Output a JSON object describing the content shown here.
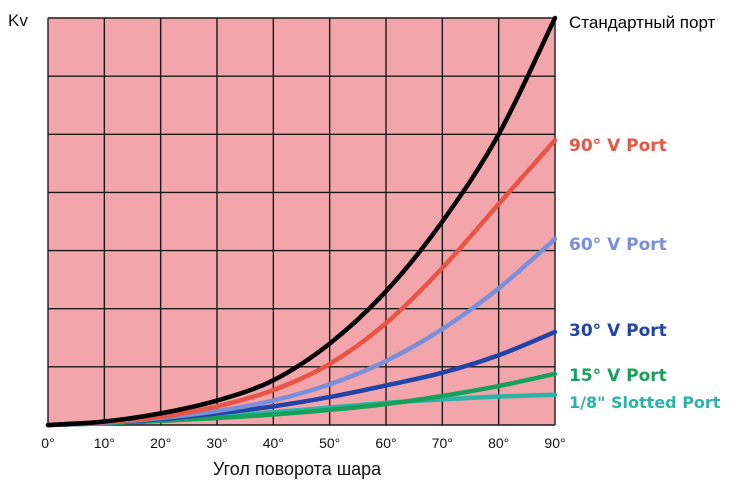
{
  "chart_data": {
    "type": "line",
    "title": "",
    "ylabel": "Kv",
    "xlabel": "Угол поворота шара",
    "x": [
      0,
      10,
      20,
      30,
      40,
      50,
      60,
      70,
      80,
      90
    ],
    "x_tick_labels": [
      "0°",
      "10°",
      "20°",
      "30°",
      "40°",
      "50°",
      "60°",
      "70°",
      "80°",
      "90°"
    ],
    "xlim": [
      0,
      90
    ],
    "ylim": [
      0,
      7
    ],
    "grid": true,
    "background_color": "#f2a6ac",
    "grid_color": "#1a1a1a",
    "legend": "labels at right end of each line",
    "series": [
      {
        "name": "Стандартный порт",
        "color": "#000000",
        "label_color": "#000000",
        "values": [
          0,
          0.06,
          0.2,
          0.42,
          0.77,
          1.4,
          2.3,
          3.5,
          5.0,
          7.0
        ]
      },
      {
        "name": "90° V Port",
        "color": "#e85545",
        "label_color": "#e85545",
        "values": [
          0,
          0.05,
          0.14,
          0.32,
          0.6,
          1.05,
          1.75,
          2.7,
          3.8,
          4.9
        ]
      },
      {
        "name": "60° V Port",
        "color": "#7b8fd8",
        "label_color": "#7b8fd8",
        "values": [
          0,
          0.04,
          0.12,
          0.24,
          0.42,
          0.7,
          1.1,
          1.65,
          2.35,
          3.2
        ]
      },
      {
        "name": "30° V Port",
        "color": "#2243a8",
        "label_color": "#2243a8",
        "values": [
          0,
          0.04,
          0.1,
          0.2,
          0.32,
          0.48,
          0.68,
          0.9,
          1.2,
          1.6
        ]
      },
      {
        "name": "15° V Port",
        "color": "#16a05a",
        "label_color": "#16a05a",
        "values": [
          0,
          0.03,
          0.07,
          0.12,
          0.18,
          0.26,
          0.36,
          0.5,
          0.67,
          0.88
        ]
      },
      {
        "name": "1/8\" Slotted Port",
        "color": "#2bb3a8",
        "label_color": "#2bb3a8",
        "values": [
          0,
          0.03,
          0.08,
          0.14,
          0.22,
          0.3,
          0.38,
          0.44,
          0.49,
          0.52
        ]
      }
    ]
  }
}
